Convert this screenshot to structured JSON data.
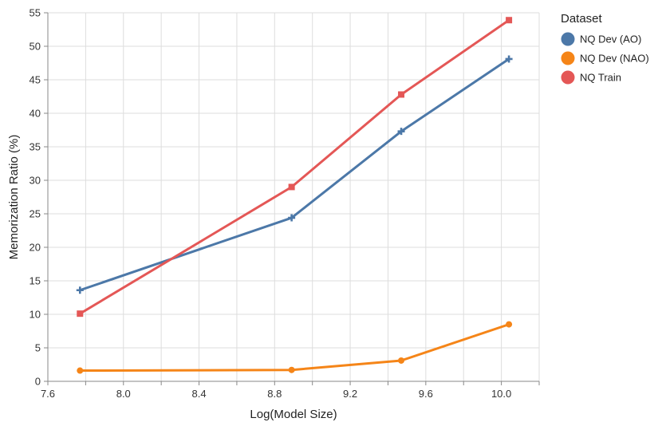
{
  "chart_data": {
    "type": "line",
    "xlabel": "Log(Model Size)",
    "ylabel": "Memorization Ratio (%)",
    "xlim": [
      7.6,
      10.2
    ],
    "ylim": [
      0,
      55
    ],
    "x_ticks": [
      7.6,
      8.0,
      8.4,
      8.8,
      9.2,
      9.6,
      10.0
    ],
    "x_tick_labels": [
      "7.6",
      "8.0",
      "8.4",
      "8.8",
      "9.2",
      "9.6",
      "10.0"
    ],
    "y_ticks": [
      0,
      5,
      10,
      15,
      20,
      25,
      30,
      35,
      40,
      45,
      50,
      55
    ],
    "y_tick_labels": [
      "0",
      "5",
      "10",
      "15",
      "20",
      "25",
      "30",
      "35",
      "40",
      "45",
      "50",
      "55"
    ],
    "grid": true,
    "legend": {
      "title": "Dataset",
      "placement": "right"
    },
    "series": [
      {
        "name": "NQ Dev (AO)",
        "color": "#4c78a8",
        "marker": "cross",
        "x": [
          7.77,
          8.89,
          9.47,
          10.04
        ],
        "y": [
          13.6,
          24.4,
          37.3,
          48.1
        ]
      },
      {
        "name": "NQ Dev (NAO)",
        "color": "#f58518",
        "marker": "circle",
        "x": [
          7.77,
          8.89,
          9.47,
          10.04
        ],
        "y": [
          1.6,
          1.7,
          3.1,
          8.5
        ]
      },
      {
        "name": "NQ Train",
        "color": "#e45756",
        "marker": "square",
        "x": [
          7.77,
          8.89,
          9.47,
          10.04
        ],
        "y": [
          10.1,
          29.0,
          42.8,
          53.9
        ]
      }
    ]
  }
}
